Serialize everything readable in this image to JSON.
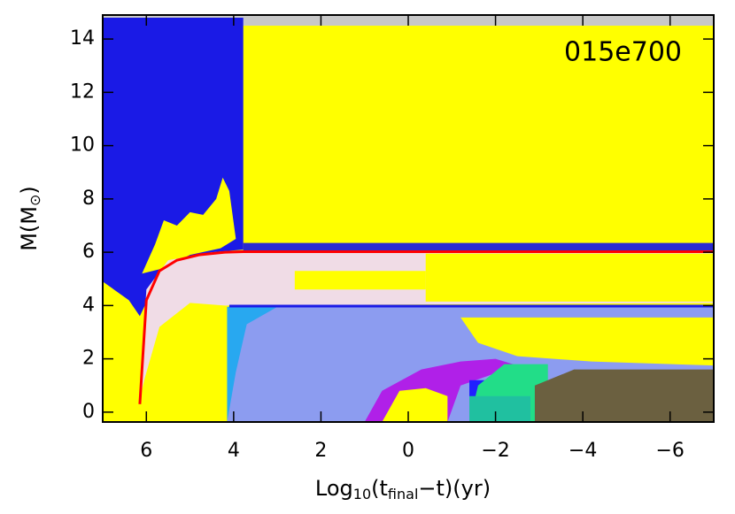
{
  "chart_data": {
    "type": "area",
    "annotation": "015e700",
    "x_label": [
      "Log",
      "10",
      "(t",
      "final",
      "−t)(yr)"
    ],
    "y_label": [
      "M(M",
      "⊙",
      ")"
    ],
    "xlim": [
      7,
      -7
    ],
    "ylim": [
      -0.37,
      14.9
    ],
    "xticks": [
      6,
      4,
      2,
      0,
      {
        "value": -2,
        "label": "−2"
      },
      {
        "value": -4,
        "label": "−4"
      },
      {
        "value": -6,
        "label": "−6"
      }
    ],
    "yticks": [
      0,
      2,
      4,
      6,
      8,
      10,
      12,
      14
    ],
    "background": "#ffff00",
    "regions": [
      {
        "color": "#c8c8c8",
        "x": [
          7,
          -7,
          -7,
          7
        ],
        "y": [
          14.9,
          14.9,
          14.5,
          14.5
        ]
      },
      {
        "color": "#1a1ae6",
        "x": [
          7,
          3.78,
          3.78,
          4.5,
          5.3,
          5.8,
          6.15,
          6.4,
          7
        ],
        "y": [
          14.8,
          14.8,
          6.1,
          6.0,
          5.6,
          4.8,
          3.6,
          4.2,
          4.9
        ]
      },
      {
        "color": "#ffff00",
        "x": [
          6.1,
          5.8,
          5.6,
          5.3,
          5.0,
          4.7,
          4.4,
          4.25,
          4.1,
          3.95,
          4.3,
          5.0,
          5.6
        ],
        "y": [
          5.2,
          6.3,
          7.2,
          7.0,
          7.5,
          7.4,
          8.0,
          8.8,
          8.3,
          6.5,
          6.15,
          5.9,
          5.4
        ]
      },
      {
        "color": "#f0dce6",
        "x": [
          6.15,
          6.0,
          5.5,
          4.5,
          3.78,
          -7,
          -7,
          4.2,
          5.0,
          5.7,
          6.05
        ],
        "y": [
          0.5,
          4.6,
          5.7,
          6.0,
          6.05,
          6.05,
          4.1,
          4.0,
          4.1,
          3.2,
          1.2
        ]
      },
      {
        "color": "#ffff00",
        "x": [
          -0.4,
          -7,
          -7,
          -0.4
        ],
        "y": [
          5.95,
          5.95,
          4.15,
          4.15
        ]
      },
      {
        "color": "#ffff00",
        "x": [
          2.6,
          -0.4,
          -0.4,
          2.6
        ],
        "y": [
          5.3,
          5.3,
          4.6,
          4.6
        ]
      },
      {
        "color": "#2a2ad0",
        "x": [
          3.78,
          -7,
          -7,
          3.78
        ],
        "y": [
          6.35,
          6.35,
          6.05,
          6.05
        ]
      },
      {
        "color": "#8c9cf0",
        "x": [
          4.15,
          4.15,
          -7,
          -7
        ],
        "y": [
          -0.37,
          3.95,
          3.95,
          -0.37
        ]
      },
      {
        "color": "#28a8f0",
        "x": [
          4.15,
          4.15,
          3.0,
          3.7,
          3.95
        ],
        "y": [
          -0.37,
          3.95,
          3.95,
          3.3,
          1.5
        ]
      },
      {
        "color": "#ffff00",
        "x": [
          -1.2,
          -7,
          -7,
          -4.2,
          -2.5,
          -1.6
        ],
        "y": [
          3.55,
          3.55,
          1.75,
          1.9,
          2.1,
          2.6
        ]
      },
      {
        "color": "#b020e8",
        "x": [
          1.0,
          0.6,
          -0.3,
          -1.2,
          -2.0,
          -2.5,
          -1.2,
          -0.9
        ],
        "y": [
          -0.37,
          0.8,
          1.6,
          1.9,
          2.0,
          1.75,
          1.0,
          -0.37
        ]
      },
      {
        "color": "#ffff00",
        "x": [
          0.6,
          0.2,
          -0.4,
          -0.9,
          -0.9
        ],
        "y": [
          -0.37,
          0.8,
          0.9,
          0.6,
          -0.37
        ]
      },
      {
        "color": "#2020ff",
        "x": [
          -1.4,
          -1.4,
          -3.3,
          -3.3
        ],
        "y": [
          0.3,
          1.2,
          1.2,
          0.3
        ]
      },
      {
        "color": "#22dd88",
        "x": [
          -1.4,
          -1.6,
          -2.2,
          -3.2,
          -3.2
        ],
        "y": [
          -0.37,
          1.0,
          1.8,
          1.8,
          -0.37
        ]
      },
      {
        "color": "#20c0a0",
        "x": [
          -1.4,
          -1.4,
          -2.8,
          -2.8
        ],
        "y": [
          -0.37,
          0.6,
          0.6,
          -0.37
        ]
      },
      {
        "color": "#6b6040",
        "x": [
          -2.9,
          -2.9,
          -3.8,
          -7,
          -7
        ],
        "y": [
          -0.37,
          1.0,
          1.6,
          1.6,
          -0.37
        ]
      }
    ],
    "lines": [
      {
        "color": "#ff0000",
        "x": [
          6.15,
          6.0,
          5.7,
          5.3,
          4.8,
          4.2,
          3.78,
          -7
        ],
        "y": [
          0.3,
          4.2,
          5.3,
          5.7,
          5.9,
          6.0,
          6.02,
          6.02
        ]
      },
      {
        "color": "#1a1ae6",
        "x": [
          4.1,
          -7
        ],
        "y": [
          3.98,
          3.98
        ]
      }
    ]
  }
}
